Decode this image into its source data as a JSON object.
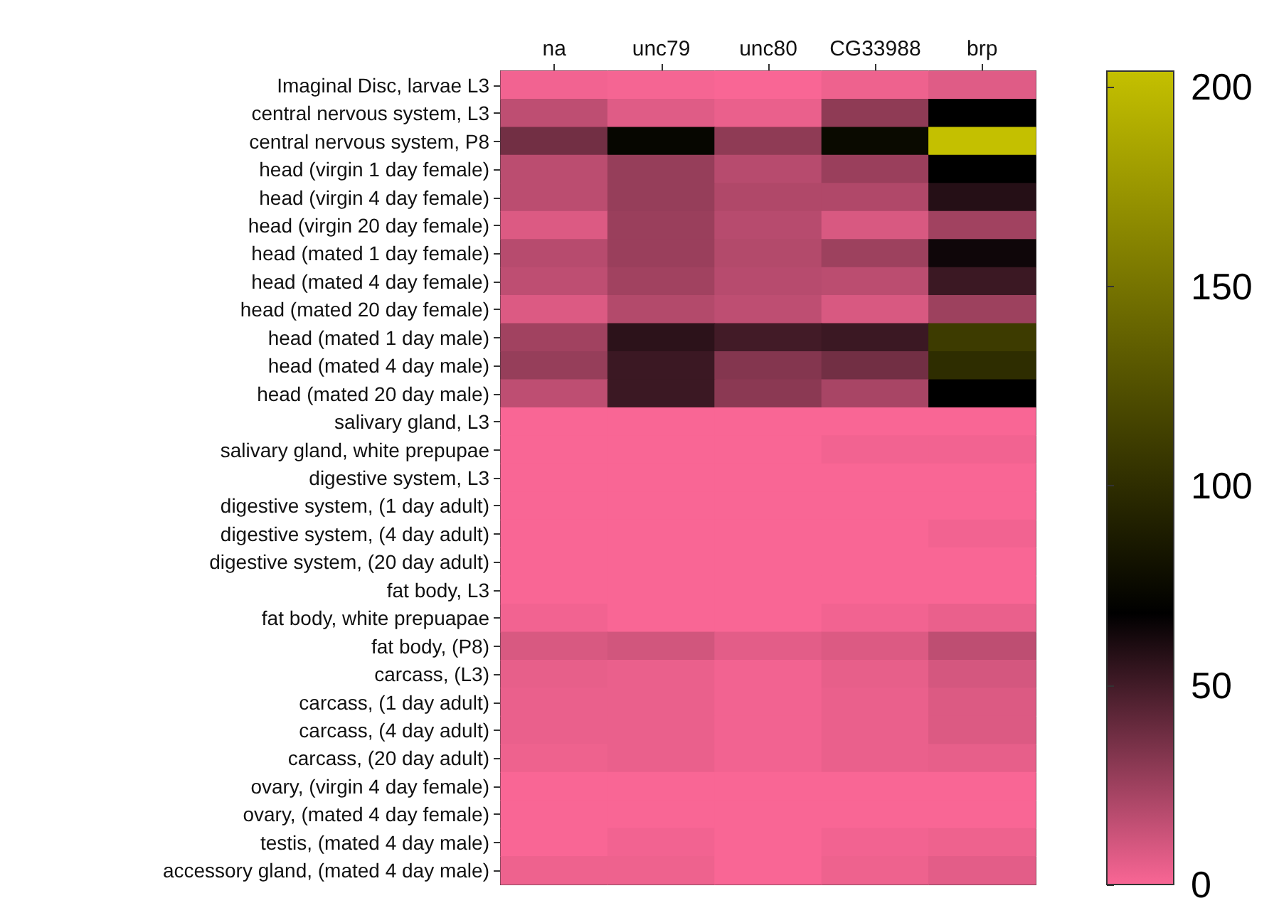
{
  "chart_data": {
    "type": "heatmap",
    "categories": [
      "na",
      "unc79",
      "unc80",
      "CG33988",
      "brp"
    ],
    "y_categories": [
      "Imaginal Disc, larvae L3",
      "central nervous system, L3",
      "central nervous system, P8",
      "head (virgin 1 day female)",
      "head (virgin 4 day female)",
      "head (virgin 20 day female)",
      "head (mated 1 day female)",
      "head (mated 4 day female)",
      "head (mated 20 day female)",
      "head (mated 1 day male)",
      "head (mated 4 day male)",
      "head (mated 20 day male)",
      "salivary gland, L3",
      "salivary gland, white prepupae",
      "digestive system, L3",
      "digestive system, (1 day adult)",
      "digestive system, (4 day adult)",
      "digestive system, (20 day adult)",
      "fat body, L3",
      "fat body, white prepuapae",
      "fat body, (P8)",
      "carcass, (L3)",
      "carcass, (1 day adult)",
      "carcass, (4 day adult)",
      "carcass, (20 day adult)",
      "ovary, (virgin 4 day female)",
      "ovary, (mated 4 day female)",
      "testis, (mated 4 day male)",
      "accessory gland, (mated 4 day male)"
    ],
    "cells": [
      [
        2,
        1,
        0,
        3,
        7
      ],
      [
        16,
        7,
        4,
        29,
        68
      ],
      [
        37,
        72,
        29,
        75,
        204
      ],
      [
        17,
        27,
        18,
        26,
        68
      ],
      [
        17,
        27,
        20,
        20,
        58
      ],
      [
        8,
        26,
        18,
        9,
        24
      ],
      [
        18,
        26,
        19,
        25,
        64
      ],
      [
        16,
        24,
        18,
        17,
        52
      ],
      [
        8,
        19,
        16,
        9,
        25
      ],
      [
        24,
        56,
        50,
        52,
        110
      ],
      [
        27,
        52,
        32,
        37,
        100
      ],
      [
        16,
        52,
        30,
        22,
        68
      ],
      [
        0,
        0,
        0,
        0,
        0
      ],
      [
        0,
        0,
        0,
        2,
        2
      ],
      [
        0,
        0,
        0,
        0,
        0
      ],
      [
        0,
        0,
        0,
        0,
        0
      ],
      [
        0,
        0,
        0,
        0,
        2
      ],
      [
        0,
        0,
        0,
        0,
        0
      ],
      [
        0,
        0,
        0,
        0,
        0
      ],
      [
        2,
        0,
        0,
        2,
        4
      ],
      [
        9,
        11,
        6,
        8,
        16
      ],
      [
        5,
        4,
        2,
        5,
        10
      ],
      [
        4,
        4,
        2,
        4,
        8
      ],
      [
        4,
        4,
        2,
        4,
        8
      ],
      [
        3,
        4,
        2,
        4,
        5
      ],
      [
        0,
        0,
        0,
        0,
        0
      ],
      [
        0,
        0,
        0,
        0,
        0
      ],
      [
        0,
        2,
        0,
        2,
        3
      ],
      [
        3,
        3,
        0,
        3,
        6
      ]
    ],
    "clim": [
      0,
      204
    ],
    "cticks": [
      0,
      50,
      100,
      150,
      200
    ]
  }
}
